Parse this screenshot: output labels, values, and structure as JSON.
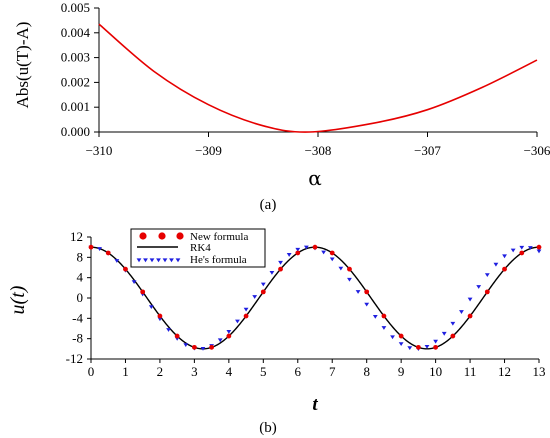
{
  "chart_data": [
    {
      "type": "line",
      "caption": "(a)",
      "xlabel": "α",
      "ylabel": "Abs(u(T)-A)",
      "xlim": [
        -310,
        -306
      ],
      "ylim": [
        0,
        0.005
      ],
      "xticks": [
        "−310",
        "−309",
        "−308",
        "−307",
        "−306"
      ],
      "yticks": [
        "0.000",
        "0.001",
        "0.002",
        "0.003",
        "0.004",
        "0.005"
      ],
      "grid": false,
      "series": [
        {
          "color": "#e60000",
          "x": [
            -310,
            -309.5,
            -309,
            -308.5,
            -308.08,
            -307.5,
            -307,
            -306.5,
            -306
          ],
          "y": [
            0.00435,
            0.00245,
            0.0011,
            0.00025,
            0.0,
            0.00035,
            0.0009,
            0.0018,
            0.0029
          ]
        }
      ]
    },
    {
      "type": "line",
      "caption": "(b)",
      "xlabel": "t",
      "ylabel": "u(t)",
      "xlim": [
        0,
        13
      ],
      "ylim": [
        -12,
        12
      ],
      "xticks": [
        "0",
        "1",
        "2",
        "3",
        "4",
        "5",
        "6",
        "7",
        "8",
        "9",
        "10",
        "11",
        "12",
        "13"
      ],
      "yticks": [
        "12",
        "8",
        "4",
        "0",
        "-4",
        "-8",
        "-12"
      ],
      "grid": false,
      "legend_position": "top-left",
      "series": [
        {
          "name": "New formula",
          "style": "dots",
          "color": "#e60000",
          "amplitude": 10,
          "period": 6.5,
          "x_step": 0.5
        },
        {
          "name": "RK4",
          "style": "line",
          "color": "#000000",
          "amplitude": 10,
          "period": 6.5
        },
        {
          "name": "He's formula",
          "style": "triangles",
          "color": "#1f1fe0",
          "amplitude": 10,
          "period": 6.3,
          "x_step": 0.25
        }
      ]
    }
  ]
}
